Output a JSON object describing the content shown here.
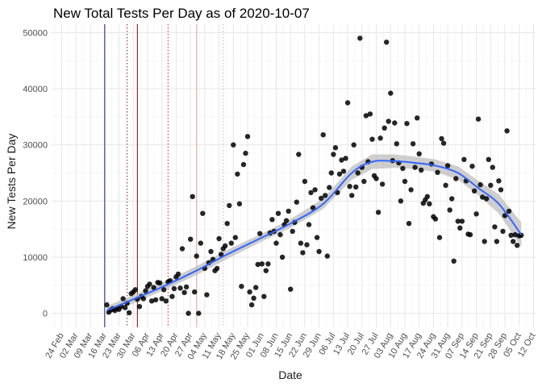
{
  "chart_data": {
    "type": "scatter",
    "title": "New Total Tests Per Day as of 2020-10-07",
    "xlabel": "Date",
    "ylabel": "New Tests Per Day",
    "x_axis": {
      "type": "date",
      "range": [
        "2020-02-19",
        "2020-10-13"
      ],
      "tick_dates": [
        "2020-02-24",
        "2020-03-02",
        "2020-03-09",
        "2020-03-16",
        "2020-03-23",
        "2020-03-30",
        "2020-04-06",
        "2020-04-13",
        "2020-04-20",
        "2020-04-27",
        "2020-05-04",
        "2020-05-11",
        "2020-05-18",
        "2020-05-25",
        "2020-06-01",
        "2020-06-08",
        "2020-06-15",
        "2020-06-22",
        "2020-06-29",
        "2020-07-06",
        "2020-07-13",
        "2020-07-20",
        "2020-07-27",
        "2020-08-03",
        "2020-08-10",
        "2020-08-17",
        "2020-08-24",
        "2020-08-31",
        "2020-09-07",
        "2020-09-14",
        "2020-09-21",
        "2020-09-28",
        "2020-10-05",
        "2020-10-12"
      ],
      "tick_labels": [
        "24 Feb",
        "02 Mar",
        "09 Mar",
        "16 Mar",
        "23 Mar",
        "30 Mar",
        "06 Apr",
        "13 Apr",
        "20 Apr",
        "27 Apr",
        "04 May",
        "11 May",
        "18 May",
        "25 May",
        "01 Jun",
        "08 Jun",
        "15 Jun",
        "22 Jun",
        "29 Jun",
        "06 Jul",
        "13 Jul",
        "20 Jul",
        "27 Jul",
        "03 Aug",
        "10 Aug",
        "17 Aug",
        "24 Aug",
        "31 Aug",
        "07 Sep",
        "14 Sep",
        "21 Sep",
        "28 Sep",
        "05 Oct",
        "12 Oct"
      ]
    },
    "y_axis": {
      "range": [
        -2500,
        51500
      ],
      "ticks": [
        0,
        10000,
        20000,
        30000,
        40000,
        50000
      ],
      "tick_labels": [
        "0",
        "10000",
        "20000",
        "30000",
        "40000",
        "50000"
      ]
    },
    "grid": true,
    "reference_lines": [
      {
        "date": "2020-03-16",
        "color": "#1a1a6e",
        "style": "solid"
      },
      {
        "date": "2020-03-27",
        "color": "#8b1a4a",
        "style": "dotted"
      },
      {
        "date": "2020-04-01",
        "color": "#8b0000",
        "style": "solid"
      },
      {
        "date": "2020-04-16",
        "color": "#cc2222",
        "style": "dotted"
      },
      {
        "date": "2020-04-30",
        "color": "#e8a0a0",
        "style": "solid"
      },
      {
        "date": "2020-05-13",
        "color": "#e8a0a0",
        "style": "dotted"
      }
    ],
    "smooth": {
      "color": "#3366ff",
      "band_color": "#bdbdbd",
      "x": [
        "2020-03-17",
        "2020-04-01",
        "2020-04-15",
        "2020-05-01",
        "2020-05-15",
        "2020-06-01",
        "2020-06-15",
        "2020-07-01",
        "2020-07-15",
        "2020-07-25",
        "2020-08-05",
        "2020-08-15",
        "2020-08-25",
        "2020-09-05",
        "2020-09-15",
        "2020-09-25",
        "2020-10-06"
      ],
      "y": [
        500,
        2800,
        5000,
        7800,
        10500,
        13500,
        16000,
        19500,
        25000,
        27000,
        27100,
        26800,
        26300,
        25000,
        22300,
        19500,
        14000
      ],
      "lower": [
        -300,
        2100,
        4300,
        7000,
        9700,
        12800,
        15200,
        18600,
        23800,
        25700,
        25900,
        25700,
        25200,
        23800,
        21000,
        17800,
        11800
      ],
      "upper": [
        1300,
        3500,
        5700,
        8600,
        11300,
        14200,
        16800,
        20400,
        26200,
        28300,
        28300,
        27900,
        27400,
        26200,
        23600,
        21200,
        16200
      ]
    },
    "point_color": "#000000",
    "points": [
      [
        "2020-03-17",
        1500
      ],
      [
        "2020-03-18",
        200
      ],
      [
        "2020-03-19",
        600
      ],
      [
        "2020-03-20",
        800
      ],
      [
        "2020-03-21",
        500
      ],
      [
        "2020-03-22",
        900
      ],
      [
        "2020-03-23",
        700
      ],
      [
        "2020-03-24",
        1200
      ],
      [
        "2020-03-25",
        2600
      ],
      [
        "2020-03-26",
        1000
      ],
      [
        "2020-03-27",
        1800
      ],
      [
        "2020-03-28",
        100
      ],
      [
        "2020-03-29",
        3500
      ],
      [
        "2020-03-30",
        3800
      ],
      [
        "2020-03-31",
        4200
      ],
      [
        "2020-04-01",
        2500
      ],
      [
        "2020-04-02",
        1200
      ],
      [
        "2020-04-03",
        3000
      ],
      [
        "2020-04-04",
        2600
      ],
      [
        "2020-04-05",
        4000
      ],
      [
        "2020-04-06",
        4800
      ],
      [
        "2020-04-07",
        5200
      ],
      [
        "2020-04-08",
        2200
      ],
      [
        "2020-04-09",
        4600
      ],
      [
        "2020-04-10",
        2400
      ],
      [
        "2020-04-11",
        5500
      ],
      [
        "2020-04-12",
        5400
      ],
      [
        "2020-04-13",
        2600
      ],
      [
        "2020-04-14",
        4200
      ],
      [
        "2020-04-15",
        2200
      ],
      [
        "2020-04-16",
        5600
      ],
      [
        "2020-04-17",
        5800
      ],
      [
        "2020-04-18",
        3000
      ],
      [
        "2020-04-19",
        4400
      ],
      [
        "2020-04-20",
        6500
      ],
      [
        "2020-04-21",
        7000
      ],
      [
        "2020-04-22",
        4500
      ],
      [
        "2020-04-23",
        11500
      ],
      [
        "2020-04-24",
        3700
      ],
      [
        "2020-04-25",
        4700
      ],
      [
        "2020-04-26",
        0
      ],
      [
        "2020-04-27",
        13200
      ],
      [
        "2020-04-28",
        20800
      ],
      [
        "2020-04-29",
        3800
      ],
      [
        "2020-04-30",
        10200
      ],
      [
        "2020-05-01",
        0
      ],
      [
        "2020-05-02",
        12500
      ],
      [
        "2020-05-03",
        17800
      ],
      [
        "2020-05-04",
        8000
      ],
      [
        "2020-05-05",
        3300
      ],
      [
        "2020-05-06",
        9000
      ],
      [
        "2020-05-07",
        11000
      ],
      [
        "2020-05-08",
        9600
      ],
      [
        "2020-05-09",
        7600
      ],
      [
        "2020-05-10",
        8000
      ],
      [
        "2020-05-11",
        13300
      ],
      [
        "2020-05-12",
        10500
      ],
      [
        "2020-05-13",
        11500
      ],
      [
        "2020-05-14",
        12000
      ],
      [
        "2020-05-15",
        16000
      ],
      [
        "2020-05-16",
        19200
      ],
      [
        "2020-05-17",
        12500
      ],
      [
        "2020-05-18",
        30000
      ],
      [
        "2020-05-19",
        13500
      ],
      [
        "2020-05-20",
        24800
      ],
      [
        "2020-05-21",
        19500
      ],
      [
        "2020-05-22",
        4800
      ],
      [
        "2020-05-23",
        26500
      ],
      [
        "2020-05-24",
        28500
      ],
      [
        "2020-05-25",
        31500
      ],
      [
        "2020-05-26",
        3800
      ],
      [
        "2020-05-27",
        1500
      ],
      [
        "2020-05-28",
        2700
      ],
      [
        "2020-05-29",
        4600
      ],
      [
        "2020-05-30",
        8700
      ],
      [
        "2020-05-31",
        14200
      ],
      [
        "2020-06-01",
        8800
      ],
      [
        "2020-06-02",
        3000
      ],
      [
        "2020-06-03",
        7600
      ],
      [
        "2020-06-04",
        8800
      ],
      [
        "2020-06-05",
        14300
      ],
      [
        "2020-06-06",
        16700
      ],
      [
        "2020-06-07",
        14600
      ],
      [
        "2020-06-08",
        12500
      ],
      [
        "2020-06-09",
        17800
      ],
      [
        "2020-06-10",
        14000
      ],
      [
        "2020-06-11",
        10000
      ],
      [
        "2020-06-12",
        15800
      ],
      [
        "2020-06-13",
        16500
      ],
      [
        "2020-06-14",
        18200
      ],
      [
        "2020-06-15",
        4300
      ],
      [
        "2020-06-16",
        14600
      ],
      [
        "2020-06-17",
        16200
      ],
      [
        "2020-06-18",
        19800
      ],
      [
        "2020-06-19",
        28300
      ],
      [
        "2020-06-20",
        12500
      ],
      [
        "2020-06-21",
        10800
      ],
      [
        "2020-06-22",
        23500
      ],
      [
        "2020-06-23",
        12200
      ],
      [
        "2020-06-24",
        15800
      ],
      [
        "2020-06-25",
        21500
      ],
      [
        "2020-06-26",
        18800
      ],
      [
        "2020-06-27",
        22000
      ],
      [
        "2020-06-28",
        13500
      ],
      [
        "2020-06-29",
        11000
      ],
      [
        "2020-06-30",
        20500
      ],
      [
        "2020-07-01",
        31800
      ],
      [
        "2020-07-02",
        21000
      ],
      [
        "2020-07-03",
        10200
      ],
      [
        "2020-07-04",
        22400
      ],
      [
        "2020-07-05",
        25000
      ],
      [
        "2020-07-06",
        28300
      ],
      [
        "2020-07-07",
        29500
      ],
      [
        "2020-07-08",
        21500
      ],
      [
        "2020-07-09",
        24800
      ],
      [
        "2020-07-10",
        27300
      ],
      [
        "2020-07-11",
        25300
      ],
      [
        "2020-07-12",
        27600
      ],
      [
        "2020-07-13",
        37500
      ],
      [
        "2020-07-14",
        22600
      ],
      [
        "2020-07-15",
        21000
      ],
      [
        "2020-07-16",
        30000
      ],
      [
        "2020-07-17",
        22500
      ],
      [
        "2020-07-18",
        25000
      ],
      [
        "2020-07-19",
        49000
      ],
      [
        "2020-07-20",
        26000
      ],
      [
        "2020-07-21",
        23500
      ],
      [
        "2020-07-22",
        35200
      ],
      [
        "2020-07-23",
        27000
      ],
      [
        "2020-07-24",
        35500
      ],
      [
        "2020-07-25",
        31000
      ],
      [
        "2020-07-26",
        24500
      ],
      [
        "2020-07-27",
        24000
      ],
      [
        "2020-07-28",
        18000
      ],
      [
        "2020-07-29",
        31200
      ],
      [
        "2020-07-30",
        23000
      ],
      [
        "2020-07-31",
        33000
      ],
      [
        "2020-08-01",
        48300
      ],
      [
        "2020-08-02",
        34200
      ],
      [
        "2020-08-03",
        39200
      ],
      [
        "2020-08-04",
        27200
      ],
      [
        "2020-08-05",
        33900
      ],
      [
        "2020-08-06",
        30200
      ],
      [
        "2020-08-07",
        26800
      ],
      [
        "2020-08-08",
        20000
      ],
      [
        "2020-08-09",
        25800
      ],
      [
        "2020-08-10",
        23500
      ],
      [
        "2020-08-11",
        33800
      ],
      [
        "2020-08-12",
        16000
      ],
      [
        "2020-08-13",
        22000
      ],
      [
        "2020-08-14",
        30200
      ],
      [
        "2020-08-15",
        26000
      ],
      [
        "2020-08-16",
        34800
      ],
      [
        "2020-08-17",
        28400
      ],
      [
        "2020-08-18",
        25500
      ],
      [
        "2020-08-19",
        19600
      ],
      [
        "2020-08-20",
        20200
      ],
      [
        "2020-08-21",
        20800
      ],
      [
        "2020-08-22",
        19500
      ],
      [
        "2020-08-23",
        26600
      ],
      [
        "2020-08-24",
        17200
      ],
      [
        "2020-08-25",
        16800
      ],
      [
        "2020-08-26",
        25100
      ],
      [
        "2020-08-27",
        13500
      ],
      [
        "2020-08-28",
        31100
      ],
      [
        "2020-08-29",
        30300
      ],
      [
        "2020-08-30",
        22800
      ],
      [
        "2020-08-31",
        26300
      ],
      [
        "2020-09-01",
        18400
      ],
      [
        "2020-09-02",
        20400
      ],
      [
        "2020-09-03",
        9300
      ],
      [
        "2020-09-04",
        24000
      ],
      [
        "2020-09-05",
        16400
      ],
      [
        "2020-09-06",
        15200
      ],
      [
        "2020-09-07",
        16400
      ],
      [
        "2020-09-08",
        27400
      ],
      [
        "2020-09-09",
        23600
      ],
      [
        "2020-09-10",
        14100
      ],
      [
        "2020-09-11",
        14000
      ],
      [
        "2020-09-12",
        26200
      ],
      [
        "2020-09-13",
        21800
      ],
      [
        "2020-09-14",
        17700
      ],
      [
        "2020-09-15",
        34600
      ],
      [
        "2020-09-16",
        22900
      ],
      [
        "2020-09-17",
        20700
      ],
      [
        "2020-09-18",
        12800
      ],
      [
        "2020-09-19",
        20400
      ],
      [
        "2020-09-20",
        27400
      ],
      [
        "2020-09-21",
        22800
      ],
      [
        "2020-09-22",
        26000
      ],
      [
        "2020-09-23",
        15400
      ],
      [
        "2020-09-24",
        12800
      ],
      [
        "2020-09-25",
        23600
      ],
      [
        "2020-09-26",
        22000
      ],
      [
        "2020-09-27",
        14600
      ],
      [
        "2020-09-28",
        17400
      ],
      [
        "2020-09-29",
        32500
      ],
      [
        "2020-09-30",
        18200
      ],
      [
        "2020-10-01",
        13900
      ],
      [
        "2020-10-02",
        12800
      ],
      [
        "2020-10-03",
        14000
      ],
      [
        "2020-10-04",
        12100
      ],
      [
        "2020-10-05",
        13800
      ],
      [
        "2020-10-06",
        13900
      ]
    ]
  }
}
